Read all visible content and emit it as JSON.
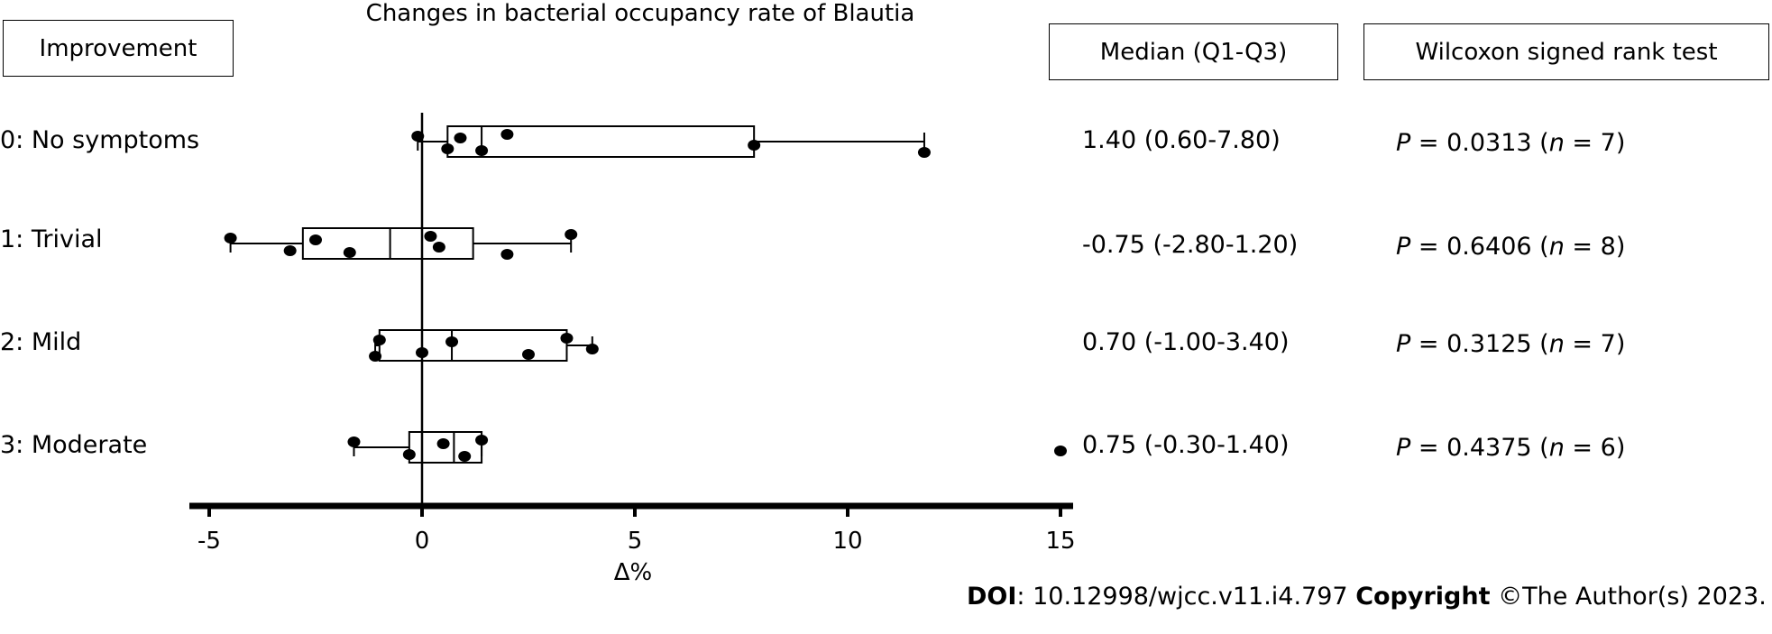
{
  "title": "Changes in bacterial occupancy rate of Blautia",
  "headers": {
    "group": "Improvement",
    "median": "Median (Q1-Q3)",
    "test": "Wilcoxon signed rank test"
  },
  "groups": [
    {
      "label": "0: No symptoms",
      "median_text": "1.40 (0.60-7.80)",
      "p_value": "0.0313",
      "n": "7"
    },
    {
      "label": "1: Trivial",
      "median_text": "-0.75 (-2.80-1.20)",
      "p_value": "0.6406",
      "n": "8"
    },
    {
      "label": "2: Mild",
      "median_text": "0.70 (-1.00-3.40)",
      "p_value": "0.3125",
      "n": "7"
    },
    {
      "label": "3: Moderate",
      "median_text": "0.75 (-0.30-1.40)",
      "p_value": "0.4375",
      "n": "6"
    }
  ],
  "stat_labels": {
    "p": "P",
    "eq": " = ",
    "n": "n"
  },
  "footer": {
    "doi_label": "DOI",
    "doi_value": ": 10.12998/wjcc.v11.i4.797 ",
    "copyright_label": "Copyright",
    "copyright_value": " ©The Author(s) 2023."
  },
  "chart_data": {
    "type": "box",
    "title": "Changes in bacterial occupancy rate of Blautia",
    "xlabel": "Δ%",
    "ylabel": "",
    "xlim": [
      -5,
      15
    ],
    "xticks": [
      -5,
      0,
      5,
      10,
      15
    ],
    "series": [
      {
        "name": "0: No symptoms",
        "whisker_low": -0.1,
        "q1": 0.6,
        "median": 1.4,
        "q3": 7.8,
        "whisker_high": 11.8,
        "points": [
          -0.1,
          0.6,
          0.9,
          1.4,
          2.0,
          7.8,
          11.8
        ]
      },
      {
        "name": "1: Trivial",
        "whisker_low": -4.5,
        "q1": -2.8,
        "median": -0.75,
        "q3": 1.2,
        "whisker_high": 3.5,
        "points": [
          -4.5,
          -3.1,
          -2.5,
          -1.7,
          0.2,
          0.4,
          2.0,
          3.5
        ]
      },
      {
        "name": "2: Mild",
        "whisker_low": -1.1,
        "q1": -1.0,
        "median": 0.7,
        "q3": 3.4,
        "whisker_high": 4.0,
        "points": [
          -1.0,
          0.0,
          0.7,
          2.5,
          3.4,
          4.0,
          -1.1
        ]
      },
      {
        "name": "3: Moderate",
        "whisker_low": -1.6,
        "q1": -0.3,
        "median": 0.75,
        "q3": 1.4,
        "whisker_high": 1.4,
        "points": [
          -1.6,
          -0.3,
          0.5,
          1.0,
          1.4,
          15.0
        ]
      }
    ]
  }
}
